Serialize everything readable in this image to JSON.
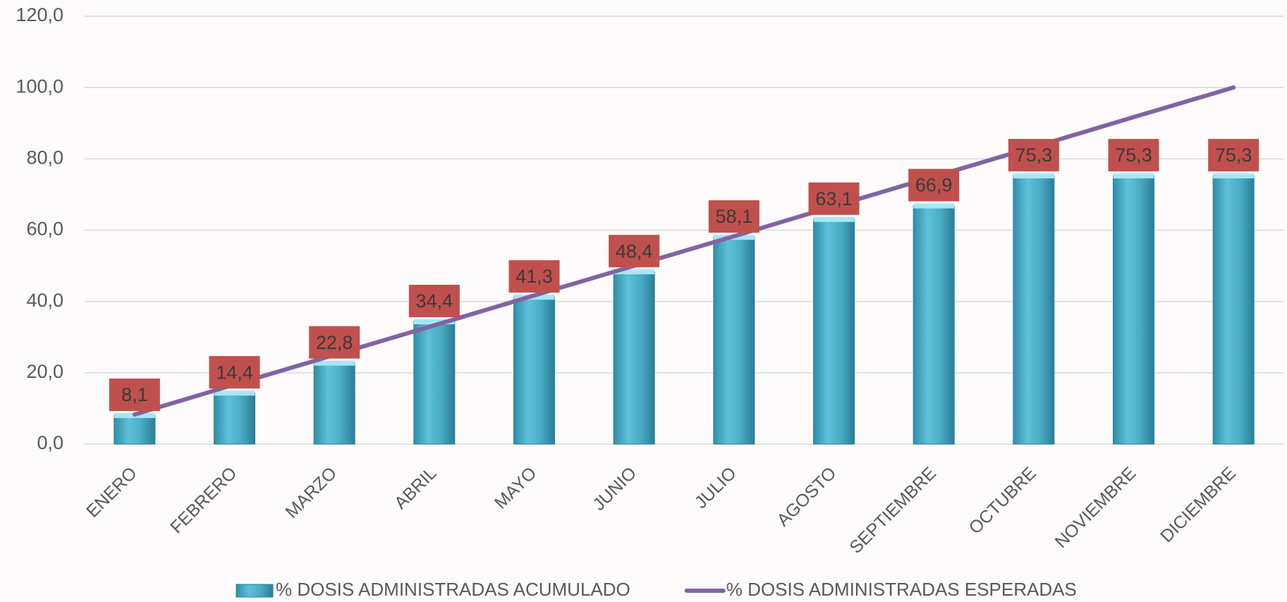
{
  "chart_data": {
    "type": "bar_line",
    "categories": [
      "ENERO",
      "FEBRERO",
      "MARZO",
      "ABRIL",
      "MAYO",
      "JUNIO",
      "JULIO",
      "AGOSTO",
      "SEPTIEMBRE",
      "OCTUBRE",
      "NOVIEMBRE",
      "DICIEMBRE"
    ],
    "series": [
      {
        "name": "% DOSIS ADMINISTRADAS ACUMULADO",
        "type": "bar",
        "color": "#4bacc6",
        "values": [
          8.1,
          14.4,
          22.8,
          34.4,
          41.3,
          48.4,
          58.1,
          63.1,
          66.9,
          75.3,
          75.3,
          75.3
        ],
        "value_labels": [
          "8,1",
          "14,4",
          "22,8",
          "34,4",
          "41,3",
          "48,4",
          "58,1",
          "63,1",
          "66,9",
          "75,3",
          "75,3",
          "75,3"
        ],
        "label_color": "#c0504d"
      },
      {
        "name": "% DOSIS ADMINISTRADAS ESPERADAS",
        "type": "line",
        "color": "#8064a2",
        "values": [
          8.3,
          16.7,
          25,
          33.3,
          41.7,
          50,
          58.3,
          66.7,
          75,
          83.3,
          91.7,
          100
        ]
      }
    ],
    "ylim": [
      0,
      120
    ],
    "yticks": [
      {
        "value": 0,
        "label": "0,0"
      },
      {
        "value": 20,
        "label": "20,0"
      },
      {
        "value": 40,
        "label": "40,0"
      },
      {
        "value": 60,
        "label": "60,0"
      },
      {
        "value": 80,
        "label": "80,0"
      },
      {
        "value": 100,
        "label": "100,0"
      },
      {
        "value": 120,
        "label": "120,0"
      }
    ],
    "grid": true,
    "legend": "bottom"
  }
}
